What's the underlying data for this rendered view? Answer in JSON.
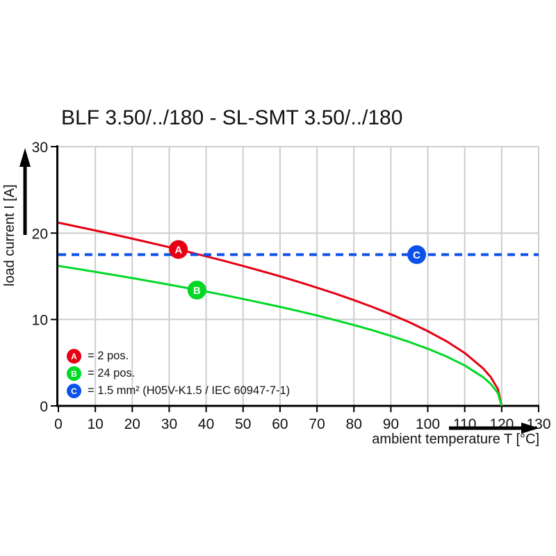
{
  "title": "BLF 3.50/../180 - SL-SMT 3.50/../180",
  "chart_data": {
    "type": "line",
    "title": "BLF 3.50/../180 - SL-SMT 3.50/../180",
    "xlabel": "ambient temperature T [°C]",
    "ylabel": "load current I [A]",
    "xlim": [
      0,
      130
    ],
    "ylim": [
      0,
      30
    ],
    "xticks": [
      0,
      10,
      20,
      30,
      40,
      50,
      60,
      70,
      80,
      90,
      100,
      110,
      120,
      130
    ],
    "yticks": [
      0,
      10,
      20,
      30
    ],
    "grid": true,
    "grid_color": "#cdcdcd",
    "axis_color": "#000000",
    "reference_line_value": 17.5,
    "derating_endpoint_temp": 120,
    "series": [
      {
        "name": "A",
        "label": "2 pos.",
        "color": "#e60012",
        "style": "solid",
        "x": [
          0,
          5,
          10,
          15,
          20,
          25,
          30,
          35,
          40,
          45,
          50,
          55,
          60,
          65,
          70,
          75,
          80,
          85,
          90,
          95,
          100,
          105,
          110,
          115,
          117,
          119,
          120
        ],
        "y": [
          21.2,
          20.75,
          20.3,
          19.83,
          19.35,
          18.86,
          18.36,
          17.84,
          17.31,
          16.76,
          16.19,
          15.6,
          14.99,
          14.35,
          13.68,
          12.98,
          12.24,
          11.45,
          10.6,
          9.68,
          8.65,
          7.5,
          6.12,
          4.33,
          3.35,
          1.94,
          0
        ]
      },
      {
        "name": "B",
        "label": "24 pos.",
        "color": "#00d824",
        "style": "solid",
        "x": [
          0,
          5,
          10,
          15,
          20,
          25,
          30,
          35,
          40,
          45,
          50,
          55,
          60,
          65,
          70,
          75,
          80,
          85,
          90,
          95,
          100,
          105,
          110,
          115,
          117,
          119,
          120
        ],
        "y": [
          16.2,
          15.86,
          15.51,
          15.15,
          14.79,
          14.41,
          14.03,
          13.63,
          13.23,
          12.81,
          12.37,
          11.92,
          11.46,
          10.97,
          10.46,
          9.92,
          9.35,
          8.75,
          8.1,
          7.39,
          6.61,
          5.73,
          4.68,
          3.31,
          2.56,
          1.48,
          0
        ]
      },
      {
        "name": "C",
        "label": "1.5 mm² (H05V-K1.5 / IEC 60947-7-1)",
        "color": "#0d52e8",
        "style": "dashed",
        "x": [
          0,
          130
        ],
        "y": [
          17.5,
          17.5
        ]
      }
    ],
    "markers": [
      {
        "label": "A",
        "x": 32.5,
        "y": 18.1,
        "color": "#e60012"
      },
      {
        "label": "B",
        "x": 37.5,
        "y": 13.4,
        "color": "#00d824"
      },
      {
        "label": "C",
        "x": 97,
        "y": 17.5,
        "color": "#0d52e8"
      }
    ],
    "legend": [
      {
        "key": "A",
        "color": "#e60012",
        "text": "= 2 pos."
      },
      {
        "key": "B",
        "color": "#00d824",
        "text": "= 24 pos."
      },
      {
        "key": "C",
        "color": "#0d52e8",
        "text": "= 1.5 mm² (H05V-K1.5 / IEC 60947-7-1)"
      }
    ]
  }
}
